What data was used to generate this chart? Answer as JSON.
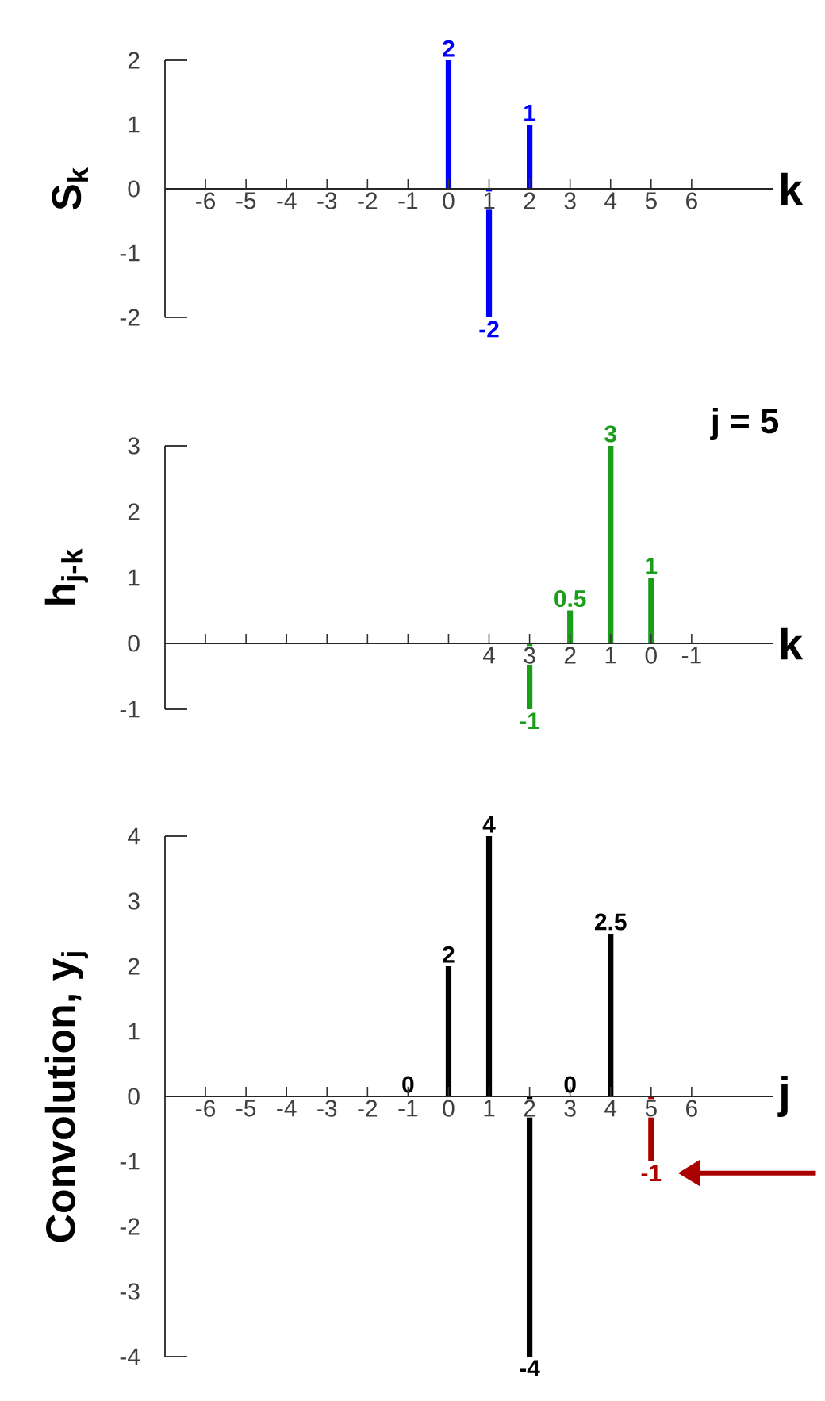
{
  "chart_data": [
    {
      "type": "bar",
      "ylabel": "S$_{k}$",
      "xlabel": "k",
      "color": "#0000ff",
      "x": [
        0,
        1,
        2
      ],
      "values": [
        2,
        -2,
        1
      ],
      "data_labels": true,
      "xlim": [
        -7,
        8
      ],
      "xticks": [
        -6,
        -5,
        -4,
        -3,
        -2,
        -1,
        0,
        1,
        2,
        3,
        4,
        5,
        6
      ],
      "ylim": [
        -2,
        2
      ],
      "yticks": [
        -2,
        -1,
        0,
        1,
        2
      ]
    },
    {
      "type": "bar",
      "ylabel": "h$_{j-k}$",
      "xlabel": "k",
      "color": "#1a9e1a",
      "x": [
        3,
        2,
        1,
        0
      ],
      "values": [
        -1,
        0.5,
        3,
        1
      ],
      "data_labels": true,
      "xlim": [
        12,
        -3
      ],
      "xticks": [
        {
          "value": 11,
          "label": null
        },
        {
          "value": 10,
          "label": null
        },
        {
          "value": 9,
          "label": null
        },
        {
          "value": 8,
          "label": null
        },
        {
          "value": 7,
          "label": null
        },
        {
          "value": 6,
          "label": null
        },
        {
          "value": 5,
          "label": null
        },
        4,
        3,
        2,
        1,
        0,
        -1
      ],
      "ylim": [
        -1,
        3
      ],
      "yticks": [
        -1,
        0,
        1,
        2,
        3
      ],
      "annotations": [
        "j = 5"
      ]
    },
    {
      "type": "bar",
      "ylabel": "Convolution, y$_{j}$",
      "xlabel": "j",
      "series": [
        {
          "color": "#000000",
          "x": [
            -1,
            0,
            1,
            2,
            3,
            4
          ],
          "values": [
            0,
            2,
            4,
            -4,
            0,
            2.5
          ]
        },
        {
          "color": "#aa0000",
          "x": [
            5
          ],
          "values": [
            -1
          ]
        }
      ],
      "data_labels": true,
      "xlim": [
        -7,
        8
      ],
      "xticks": [
        -6,
        -5,
        -4,
        -3,
        -2,
        -1,
        0,
        1,
        2,
        3,
        4,
        5,
        6
      ],
      "ylim": [
        -4,
        4
      ],
      "yticks": [
        -4,
        -3,
        -2,
        -1,
        0,
        1,
        2,
        3,
        4
      ]
    }
  ]
}
